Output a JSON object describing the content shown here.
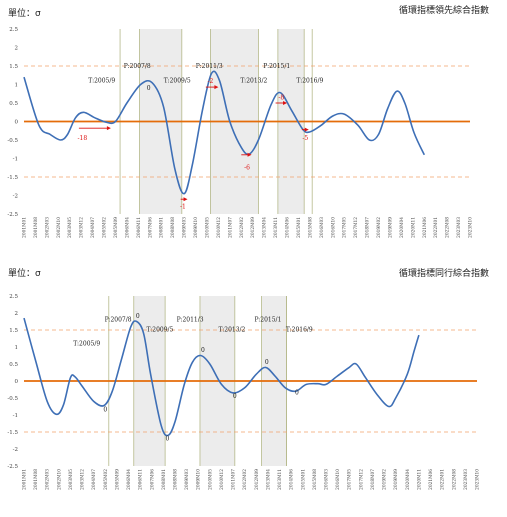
{
  "charts": [
    {
      "unit_label": "單位：σ",
      "title": "循環指標領先綜合指數",
      "chart_data": {
        "type": "line",
        "ylim": [
          -2.5,
          2.5
        ],
        "yticks": [
          "2.5",
          "2",
          "1.5",
          "1",
          "0.5",
          "0",
          "-0.5",
          "-1",
          "-1.5",
          "-2",
          "-2.5"
        ],
        "reference_line": 0,
        "dashed_lines": [
          1.5,
          -1.5
        ],
        "x_labels": [
          "2001M01",
          "2001M08",
          "2002M03",
          "2002M10",
          "2003M05",
          "2003M12",
          "2004M07",
          "2005M02",
          "2005M09",
          "2006M04",
          "2006M11",
          "2007M06",
          "2008M01",
          "2008M08",
          "2009M03",
          "2009M10",
          "2010M05",
          "2010M12",
          "2011M07",
          "2012M02",
          "2012M09",
          "2013M04",
          "2013M11",
          "2014M06",
          "2015M01",
          "2015M08",
          "2016M03",
          "2016M10",
          "2017M05",
          "2017M12",
          "2018M07",
          "2019M02",
          "2019M09",
          "2020M04",
          "2020M11",
          "2021M06",
          "2022M01",
          "2022M08",
          "2023M03",
          "2023M10"
        ],
        "series": [
          {
            "points": [
              [
                0,
                1.2
              ],
              [
                1.3,
                -0.1
              ],
              [
                2.3,
                -0.35
              ],
              [
                3.2,
                -0.5
              ],
              [
                3.8,
                -0.35
              ],
              [
                4.5,
                0.1
              ],
              [
                5.2,
                0.25
              ],
              [
                6.2,
                0.1
              ],
              [
                7.2,
                -0.02
              ],
              [
                8.0,
                0.0
              ],
              [
                9.0,
                0.5
              ],
              [
                10.2,
                1.0
              ],
              [
                11.2,
                1.05
              ],
              [
                12.2,
                0.4
              ],
              [
                13.2,
                -1.3
              ],
              [
                14.0,
                -1.95
              ],
              [
                14.7,
                -1.2
              ],
              [
                15.6,
                0.3
              ],
              [
                16.4,
                1.3
              ],
              [
                17.1,
                1.1
              ],
              [
                18.0,
                0.0
              ],
              [
                19.0,
                -0.7
              ],
              [
                19.7,
                -0.88
              ],
              [
                20.5,
                -0.5
              ],
              [
                21.6,
                0.45
              ],
              [
                22.4,
                0.78
              ],
              [
                23.4,
                0.3
              ],
              [
                24.4,
                -0.22
              ],
              [
                25.0,
                -0.28
              ],
              [
                26.0,
                -0.1
              ],
              [
                27.0,
                0.15
              ],
              [
                28.0,
                0.2
              ],
              [
                29.2,
                -0.1
              ],
              [
                30.2,
                -0.5
              ],
              [
                31.0,
                -0.35
              ],
              [
                31.8,
                0.35
              ],
              [
                32.6,
                0.82
              ],
              [
                33.3,
                0.5
              ],
              [
                34.1,
                -0.3
              ],
              [
                35.0,
                -0.9
              ]
            ]
          }
        ],
        "shaded_ranges": [
          [
            10.1,
            13.8
          ],
          [
            16.3,
            20.5
          ],
          [
            22.2,
            24.5
          ]
        ],
        "vertical_lines": [
          [
            8.4,
            10.1
          ],
          [
            13.8,
            16.3
          ],
          [
            20.5,
            22.2
          ],
          [
            24.5,
            25.2
          ]
        ],
        "cycle_labels": [
          {
            "text": "T:2005/9",
            "x": 6.8,
            "y": 1.05
          },
          {
            "text": "P:2007/8",
            "x": 9.9,
            "y": 1.45
          },
          {
            "text": "T:2009/5",
            "x": 13.4,
            "y": 1.05
          },
          {
            "text": "P:2011/3",
            "x": 16.2,
            "y": 1.45
          },
          {
            "text": "T:2013/2",
            "x": 20.1,
            "y": 1.05
          },
          {
            "text": "P:2015/1",
            "x": 22.1,
            "y": 1.45
          },
          {
            "text": "T:2016/9",
            "x": 25.0,
            "y": 1.05
          }
        ],
        "lead_annotations": [
          {
            "text": "-18",
            "x": 5.1,
            "y": -0.5,
            "arrow": [
              4.8,
              -0.18,
              7.6,
              -0.18
            ]
          },
          {
            "text": "0",
            "x": 10.9,
            "y": 0.85
          },
          {
            "text": "-1",
            "x": 13.9,
            "y": -2.35,
            "arrow": [
              13.7,
              -2.1,
              14.3,
              -2.1
            ]
          },
          {
            "text": "-2",
            "x": 16.3,
            "y": 1.04,
            "arrow": [
              15.9,
              0.93,
              17.0,
              0.93
            ]
          },
          {
            "text": "-6",
            "x": 19.5,
            "y": -1.3,
            "arrow": [
              19.0,
              -0.9,
              19.9,
              -0.9
            ]
          },
          {
            "text": "-8",
            "x": 22.5,
            "y": 0.6,
            "arrow": [
              22.0,
              0.5,
              23.0,
              0.5
            ]
          },
          {
            "text": "-5",
            "x": 24.6,
            "y": -0.5,
            "arrow": [
              24.3,
              -0.22,
              24.9,
              -0.22
            ]
          }
        ]
      }
    },
    {
      "unit_label": "單位：σ",
      "title": "循環指標同行綜合指數",
      "chart_data": {
        "type": "line",
        "ylim": [
          -2.5,
          2.5
        ],
        "yticks": [
          "2.5",
          "2",
          "1.5",
          "1",
          "0.5",
          "0",
          "-0.5",
          "-1",
          "-1.5",
          "-2",
          "-2.5"
        ],
        "reference_line": 0,
        "dashed_lines": [
          1.5,
          -1.5
        ],
        "x_labels": [
          "2001M01",
          "2001M08",
          "2002M03",
          "2002M10",
          "2003M05",
          "2003M12",
          "2004M07",
          "2005M02",
          "2005M09",
          "2006M04",
          "2006M11",
          "2007M06",
          "2008M01",
          "2008M08",
          "2009M03",
          "2009M10",
          "2010M05",
          "2010M12",
          "2011M07",
          "2012M02",
          "2012M09",
          "2013M04",
          "2013M11",
          "2014M06",
          "2015M01",
          "2015M08",
          "2016M03",
          "2016M10",
          "2017M05",
          "2017M12",
          "2018M07",
          "2019M02",
          "2019M09",
          "2020M04",
          "2020M11",
          "2021M06",
          "2022M01",
          "2022M08",
          "2023M03",
          "2023M10"
        ],
        "series": [
          {
            "points": [
              [
                0,
                1.85
              ],
              [
                1.0,
                0.6
              ],
              [
                2.0,
                -0.6
              ],
              [
                2.8,
                -0.98
              ],
              [
                3.4,
                -0.7
              ],
              [
                4.0,
                0.1
              ],
              [
                4.4,
                0.12
              ],
              [
                5.0,
                -0.15
              ],
              [
                6.0,
                -0.6
              ],
              [
                6.9,
                -0.72
              ],
              [
                7.6,
                -0.3
              ],
              [
                8.4,
                0.65
              ],
              [
                9.2,
                1.6
              ],
              [
                9.7,
                1.75
              ],
              [
                10.3,
                1.4
              ],
              [
                10.9,
                0.2
              ],
              [
                11.8,
                -1.3
              ],
              [
                12.4,
                -1.6
              ],
              [
                13.0,
                -1.2
              ],
              [
                13.8,
                -0.1
              ],
              [
                14.5,
                0.55
              ],
              [
                15.2,
                0.75
              ],
              [
                16.0,
                0.5
              ],
              [
                17.0,
                -0.1
              ],
              [
                18.0,
                -0.35
              ],
              [
                19.0,
                -0.2
              ],
              [
                20.0,
                0.2
              ],
              [
                20.8,
                0.4
              ],
              [
                21.6,
                0.15
              ],
              [
                22.5,
                -0.2
              ],
              [
                23.4,
                -0.3
              ],
              [
                24.3,
                -0.1
              ],
              [
                25.3,
                -0.08
              ],
              [
                26.0,
                -0.1
              ],
              [
                27.0,
                0.15
              ],
              [
                28.0,
                0.4
              ],
              [
                28.6,
                0.5
              ],
              [
                29.4,
                0.1
              ],
              [
                30.4,
                -0.4
              ],
              [
                31.4,
                -0.75
              ],
              [
                32.0,
                -0.5
              ],
              [
                33.0,
                0.2
              ],
              [
                33.6,
                0.9
              ],
              [
                34.0,
                1.35
              ]
            ]
          }
        ],
        "shaded_ranges": [
          [
            9.45,
            12.15
          ],
          [
            15.15,
            18.15
          ],
          [
            20.45,
            22.6
          ]
        ],
        "vertical_lines": [
          [
            7.3,
            9.45
          ],
          [
            12.15,
            15.15
          ],
          [
            18.15,
            20.45
          ],
          [
            22.6,
            22.6
          ]
        ],
        "cycle_labels": [
          {
            "text": "T:2005/9",
            "x": 5.4,
            "y": 1.05
          },
          {
            "text": "P:2007/8",
            "x": 8.1,
            "y": 1.75
          },
          {
            "text": "T:2009/5",
            "x": 11.7,
            "y": 1.45
          },
          {
            "text": "P:2011/3",
            "x": 14.3,
            "y": 1.75
          },
          {
            "text": "T:2013/2",
            "x": 17.9,
            "y": 1.45
          },
          {
            "text": "P:2015/1",
            "x": 21.0,
            "y": 1.75
          },
          {
            "text": "T:2016/9",
            "x": 23.7,
            "y": 1.45
          }
        ],
        "lead_annotations": [
          {
            "text": "0",
            "x": 7.0,
            "y": -0.9
          },
          {
            "text": "0",
            "x": 9.8,
            "y": 1.85
          },
          {
            "text": "0",
            "x": 12.35,
            "y": -1.75
          },
          {
            "text": "0",
            "x": 15.4,
            "y": 0.85
          },
          {
            "text": "0",
            "x": 18.15,
            "y": -0.5
          },
          {
            "text": "0",
            "x": 20.9,
            "y": 0.5
          },
          {
            "text": "0",
            "x": 23.5,
            "y": -0.4
          }
        ]
      }
    }
  ]
}
